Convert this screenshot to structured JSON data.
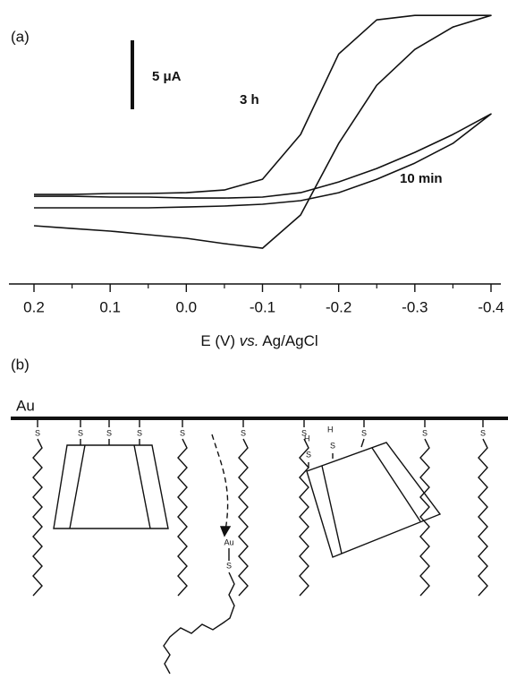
{
  "chart_data": {
    "type": "line",
    "xlabel": {
      "pre": "E (V) ",
      "em": "vs.",
      "post": " Ag/AgCl"
    },
    "xlim": [
      0.2,
      -0.4
    ],
    "xticks": [
      0.2,
      0.1,
      {
        "value": 0,
        "label": "0.0"
      },
      -0.1,
      -0.2,
      -0.3,
      -0.4
    ],
    "xminorticks": [
      0.15,
      0.05,
      -0.05,
      -0.15,
      -0.25,
      -0.35
    ],
    "ylim": [
      -4,
      14
    ],
    "scale_bar": {
      "value": 5,
      "label": "5 μA"
    },
    "series": [
      {
        "name": "3 h",
        "color": "#111111",
        "x": [
          0.2,
          0.15,
          0.1,
          0.05,
          0,
          -0.05,
          -0.1,
          -0.15,
          -0.2,
          -0.25,
          -0.3,
          -0.35,
          -0.4,
          -0.35,
          -0.3,
          -0.25,
          -0.2,
          -0.15,
          -0.1,
          -0.05,
          0,
          0.05,
          0.1,
          0.15,
          0.2
        ],
        "values": [
          0.87,
          0.87,
          0.94,
          0.94,
          1.0,
          1.19,
          1.97,
          5.22,
          11.06,
          13.53,
          13.86,
          13.86,
          13.86,
          13.01,
          11.39,
          8.79,
          4.57,
          -0.62,
          -3.03,
          -2.7,
          -2.31,
          -2.05,
          -1.79,
          -1.6,
          -1.4
        ]
      },
      {
        "name": "10 min",
        "color": "#111111",
        "x": [
          0.2,
          0.15,
          0.1,
          0.05,
          0,
          -0.05,
          -0.1,
          -0.15,
          -0.2,
          -0.25,
          -0.3,
          -0.35,
          -0.4,
          -0.35,
          -0.3,
          -0.25,
          -0.2,
          -0.15,
          -0.1,
          -0.05,
          0,
          0.05,
          0.1,
          0.15,
          0.2
        ],
        "values": [
          -0.1,
          -0.1,
          -0.1,
          -0.1,
          -0.04,
          0.03,
          0.16,
          0.42,
          1.0,
          1.97,
          3.14,
          4.57,
          6.71,
          5.22,
          3.92,
          2.75,
          1.78,
          1.0,
          0.68,
          0.61,
          0.61,
          0.68,
          0.68,
          0.74,
          0.74
        ]
      }
    ]
  },
  "panel_labels": [
    "(a)",
    "(b)"
  ],
  "schematic": {
    "electrode": "Au",
    "anchor_labels": [
      "S",
      "S",
      "S",
      "S",
      "S",
      "S",
      "S",
      "S",
      "S",
      "S"
    ],
    "thiol_labels": [
      {
        "h": "H",
        "s": "S"
      },
      {
        "h": "H",
        "s": "S"
      }
    ],
    "adsorbed_labels": [
      "Au",
      "S"
    ]
  }
}
